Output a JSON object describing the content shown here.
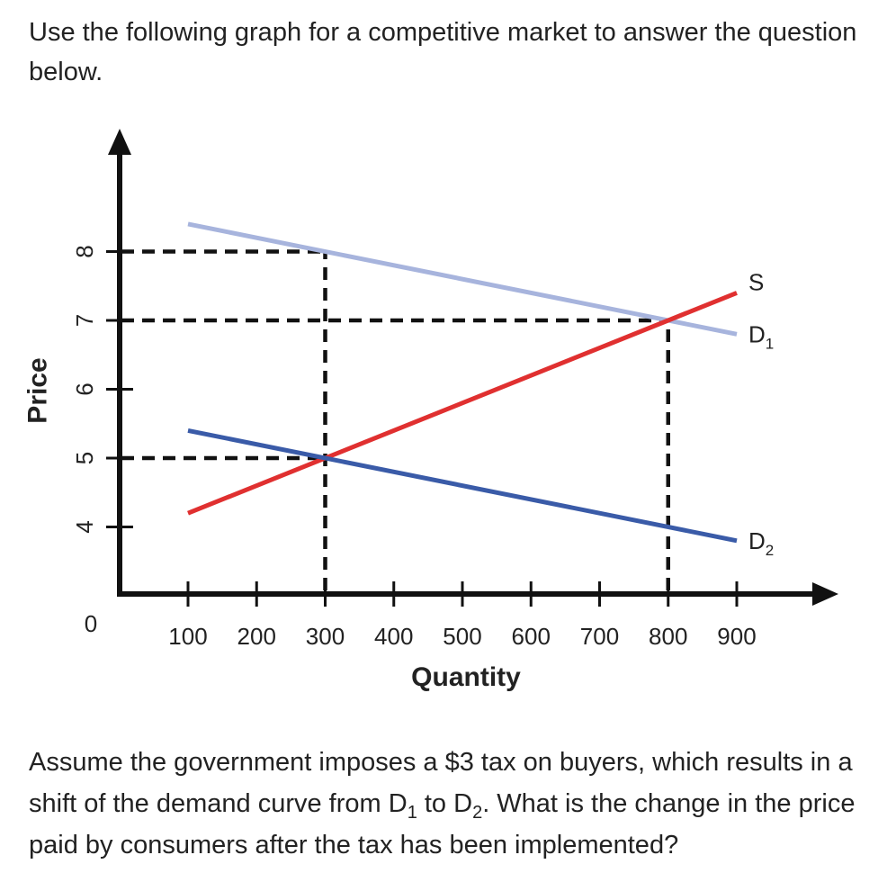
{
  "intro_text": "Use the following graph for a competitive market to answer the question below.",
  "question": {
    "part1": "Assume the government imposes a $3 tax on buyers, which results in a shift of the demand curve from D",
    "sub1": "1",
    "part2": " to D",
    "sub2": "2",
    "part3": ". What is the change in the price paid by consumers after the tax has been implemented?"
  },
  "chart_data": {
    "type": "line",
    "xlabel": "Quantity",
    "ylabel": "Price",
    "x_ticks": [
      100,
      200,
      300,
      400,
      500,
      600,
      700,
      800,
      900
    ],
    "y_ticks": [
      4,
      5,
      6,
      7,
      8
    ],
    "origin_label": "0",
    "xlim": [
      0,
      1000
    ],
    "ylim": [
      0,
      9.2
    ],
    "grid": false,
    "series": [
      {
        "name": "D",
        "name_sub": "1",
        "color": "#a7b4dd",
        "points": [
          [
            100,
            8.4
          ],
          [
            900,
            6.8
          ]
        ]
      },
      {
        "name": "S",
        "name_sub": "",
        "color": "#e03030",
        "points": [
          [
            100,
            4.2
          ],
          [
            900,
            7.4
          ]
        ]
      },
      {
        "name": "D",
        "name_sub": "2",
        "color": "#3a5ba8",
        "points": [
          [
            100,
            5.4
          ],
          [
            900,
            3.8
          ]
        ]
      }
    ],
    "guides": [
      {
        "type": "h",
        "y": 8,
        "x_to": 300
      },
      {
        "type": "h",
        "y": 7,
        "x_to": 800
      },
      {
        "type": "h",
        "y": 5,
        "x_to": 300
      },
      {
        "type": "v",
        "x": 300,
        "y_from": 0,
        "y_to": 8
      },
      {
        "type": "v",
        "x": 800,
        "y_from": 0,
        "y_to": 7
      }
    ]
  }
}
